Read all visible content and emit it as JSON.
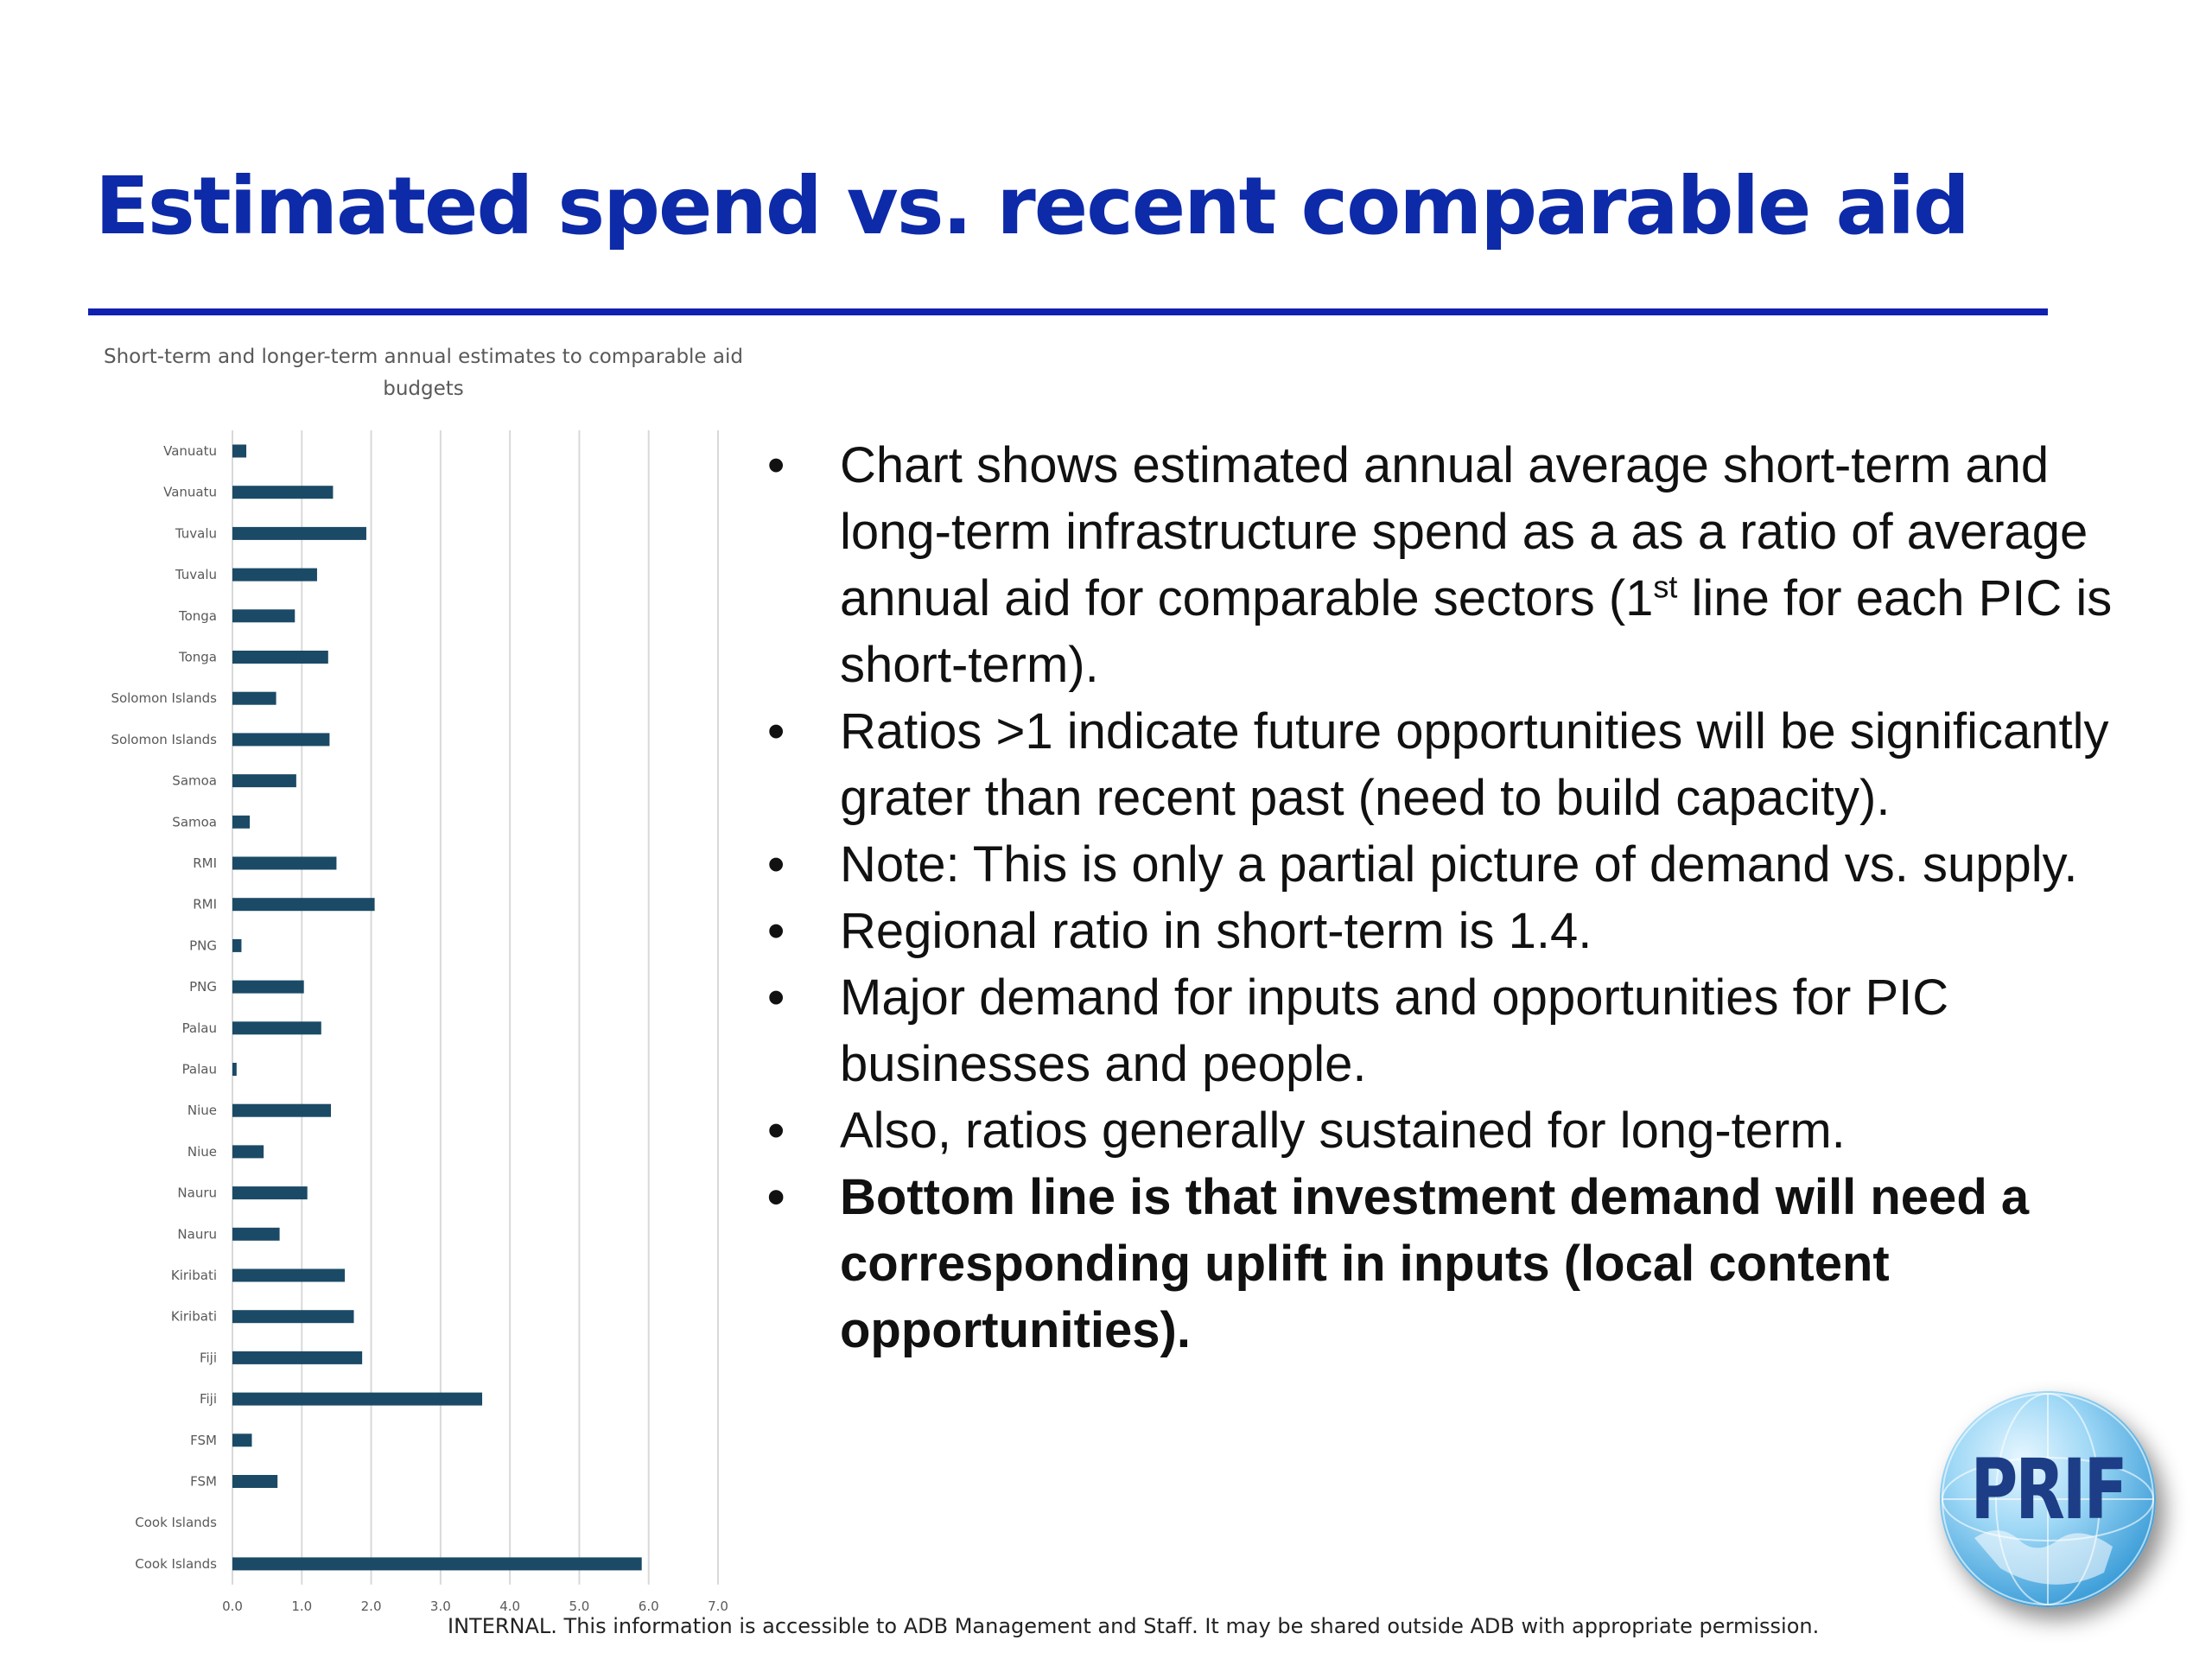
{
  "slide": {
    "title": "Estimated spend vs. recent comparable aid",
    "footer": "INTERNAL. This information is accessible to ADB Management and Staff. It may be shared outside ADB with appropriate permission.",
    "logo_text": "PRIF"
  },
  "bullets": [
    {
      "text_before": "Chart shows estimated annual average short-term and long-term infrastructure spend as a as a ratio of average annual aid for comparable sectors (1",
      "sup": "st",
      "text_after": " line for each PIC is short-term)."
    },
    {
      "text": "Ratios >1 indicate future opportunities will be significantly grater than recent past (need to build capacity)."
    },
    {
      "text": "Note: This is only a partial picture of demand vs. supply."
    },
    {
      "text": "Regional ratio in short-term is 1.4."
    },
    {
      "text": "Major demand for inputs and opportunities for PIC businesses and people."
    },
    {
      "text": "Also, ratios generally sustained for long-term."
    },
    {
      "text": "Bottom line is that investment demand will need a corresponding uplift in inputs (local content opportunities)."
    }
  ],
  "chart_data": {
    "type": "bar",
    "orientation": "horizontal",
    "title": "Short-term and longer-term annual estimates  to comparable aid budgets",
    "categories": [
      "Vanuatu",
      "Vanuatu",
      "Tuvalu",
      "Tuvalu",
      "Tonga",
      "Tonga",
      "Solomon Islands",
      "Solomon Islands",
      "Samoa",
      "Samoa",
      "RMI",
      "RMI",
      "PNG",
      "PNG",
      "Palau",
      "Palau",
      "Niue",
      "Niue",
      "Nauru",
      "Nauru",
      "Kiribati",
      "Kiribati",
      "Fiji",
      "Fiji",
      "FSM",
      "FSM",
      "Cook Islands",
      "Cook Islands"
    ],
    "values": [
      0.2,
      1.45,
      1.93,
      1.22,
      0.9,
      1.38,
      0.63,
      1.4,
      0.92,
      0.25,
      1.5,
      2.05,
      0.13,
      1.03,
      1.28,
      0.06,
      1.42,
      0.45,
      1.08,
      0.68,
      1.62,
      1.75,
      1.87,
      3.6,
      0.28,
      0.65,
      0.0,
      5.9
    ],
    "xticks": [
      "0.0",
      "1.0",
      "2.0",
      "3.0",
      "4.0",
      "5.0",
      "6.0",
      "7.0"
    ],
    "xlim": [
      0,
      7
    ],
    "grid": "vertical",
    "color": "#1b4a66"
  }
}
